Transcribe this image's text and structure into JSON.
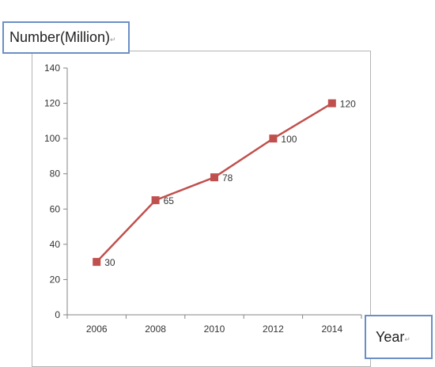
{
  "chart_data": {
    "type": "line",
    "x": [
      "2006",
      "2008",
      "2010",
      "2012",
      "2014"
    ],
    "series": [
      {
        "values": [
          30,
          65,
          78,
          100,
          120
        ],
        "data_labels": [
          "30",
          "65",
          "78",
          "100",
          "120"
        ]
      }
    ],
    "ylabel": "Number(Million)",
    "xlabel": "Year",
    "ylim": [
      0,
      140
    ],
    "yticks": [
      "0",
      "20",
      "40",
      "60",
      "80",
      "100",
      "120",
      "140"
    ],
    "grid": false,
    "line_color": "#c0504d"
  }
}
